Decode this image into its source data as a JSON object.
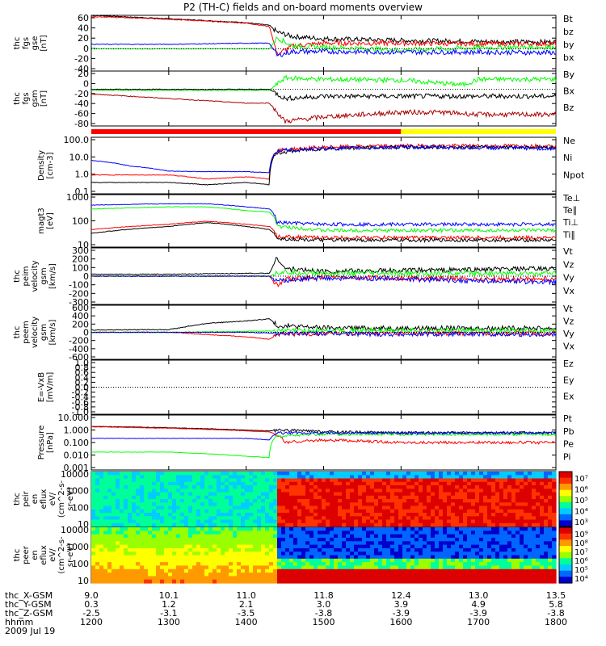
{
  "title": "P2 (TH-C) fields and on-board moments overview",
  "colors": {
    "black": "#000000",
    "red": "#ff0000",
    "green": "#00ff00",
    "blue": "#0000ff",
    "darkred": "#aa0000"
  },
  "time": {
    "start": 12.0,
    "end": 18.0,
    "tick_labels": [
      "1200",
      "1300",
      "1400",
      "1500",
      "1600",
      "1700",
      "1800"
    ]
  },
  "footer": {
    "rows": [
      {
        "name": "thc_X-GSM",
        "values": [
          "9.0",
          "10.1",
          "11.0",
          "11.8",
          "12.4",
          "13.0",
          "13.5"
        ]
      },
      {
        "name": "thc_Y-GSM",
        "values": [
          "0.3",
          "1.2",
          "2.1",
          "3.0",
          "3.9",
          "4.9",
          "5.8"
        ]
      },
      {
        "name": "thc_Z-GSM",
        "values": [
          "-2.5",
          "-3.1",
          "-3.5",
          "-3.8",
          "-3.9",
          "-3.9",
          "-3.8"
        ]
      },
      {
        "name": "hhmm",
        "values": [
          "1200",
          "1300",
          "1400",
          "1500",
          "1600",
          "1700",
          "1800"
        ]
      }
    ],
    "date": "2009 Jul 19"
  },
  "chart_data": [
    {
      "type": "line",
      "panel": "fgs-gse",
      "ylabel": "thc fgs gse [nT]",
      "ylim": [
        -40,
        60
      ],
      "ticks": [
        "60",
        "40",
        "20",
        "0",
        "-20",
        "-40"
      ],
      "series": [
        {
          "name": "Bt",
          "color": "#000000",
          "x": [
            12.0,
            13.0,
            14.0,
            14.3,
            14.4,
            14.6,
            15.0,
            16.0,
            17.0,
            18.0
          ],
          "y": [
            60,
            54,
            47,
            42,
            30,
            22,
            18,
            15,
            13,
            12
          ]
        },
        {
          "name": "bz",
          "color": "#ff0000",
          "x": [
            12.0,
            13.0,
            14.0,
            14.3,
            14.4,
            14.6,
            15.0,
            16.0,
            17.0,
            18.0
          ],
          "y": [
            58,
            53,
            46,
            40,
            -10,
            5,
            10,
            10,
            9,
            9
          ]
        },
        {
          "name": "by",
          "color": "#00ff00",
          "x": [
            12.0,
            13.0,
            14.0,
            14.3,
            14.4,
            14.6,
            15.0,
            16.0,
            17.0,
            18.0
          ],
          "y": [
            0,
            0,
            0,
            0,
            20,
            5,
            3,
            -2,
            2,
            3
          ]
        },
        {
          "name": "bx",
          "color": "#0000ff",
          "x": [
            12.0,
            13.0,
            14.0,
            14.3,
            14.4,
            14.6,
            15.0,
            16.0,
            17.0,
            18.0
          ],
          "y": [
            8,
            8,
            10,
            10,
            -12,
            -5,
            -5,
            -6,
            -6,
            -7
          ]
        }
      ]
    },
    {
      "type": "line",
      "panel": "fgs-gsm",
      "ylabel": "thc fgs gsm [nT]",
      "ylim": [
        -80,
        40
      ],
      "ticks": [
        "20",
        "0",
        "-20",
        "-40",
        "-60",
        "-80"
      ],
      "series": [
        {
          "name": "By",
          "color": "#00ff00",
          "x": [
            12.0,
            13.0,
            14.0,
            14.3,
            14.5,
            15.0,
            16.0,
            16.8,
            17.0,
            18.0
          ],
          "y": [
            -2,
            -2,
            -2,
            -2,
            25,
            22,
            20,
            10,
            22,
            22
          ]
        },
        {
          "name": "Bx",
          "color": "#000000",
          "x": [
            12.0,
            13.0,
            14.0,
            14.3,
            14.5,
            15.0,
            16.0,
            17.0,
            18.0
          ],
          "y": [
            0,
            0,
            0,
            0,
            -20,
            -15,
            -15,
            -15,
            -15
          ]
        },
        {
          "name": "Bz",
          "color": "#aa0000",
          "x": [
            12.0,
            13.0,
            14.0,
            14.3,
            14.5,
            15.0,
            16.0,
            16.5,
            17.0,
            18.0
          ],
          "y": [
            -10,
            -20,
            -30,
            -30,
            -70,
            -60,
            -50,
            -50,
            -55,
            -55
          ]
        }
      ]
    },
    {
      "type": "line",
      "panel": "density",
      "ylabel": "Density [cm-3]",
      "scale": "log",
      "ylim": [
        0.1,
        100
      ],
      "ticks": [
        "100.0",
        "10.0",
        "1.0",
        "0.1"
      ],
      "series": [
        {
          "name": "Ne",
          "color": "#ff0000",
          "x": [
            12.0,
            13.0,
            13.5,
            14.0,
            14.3,
            14.4,
            15.0,
            16.0,
            17.0,
            18.0
          ],
          "y": [
            1.0,
            1.0,
            0.6,
            0.8,
            0.6,
            20,
            30,
            35,
            35,
            35
          ]
        },
        {
          "name": "Ni",
          "color": "#000000",
          "x": [
            12.0,
            13.0,
            13.5,
            14.0,
            14.3,
            14.4,
            15.0,
            16.0,
            17.0,
            18.0
          ],
          "y": [
            0.4,
            0.4,
            0.3,
            0.4,
            0.3,
            15,
            25,
            30,
            30,
            30
          ]
        },
        {
          "name": "Npot",
          "color": "#0000ff",
          "x": [
            12.0,
            12.5,
            13.0,
            13.5,
            14.0,
            14.3,
            14.4,
            15.0,
            16.0,
            17.0,
            18.0
          ],
          "y": [
            6,
            3,
            1.6,
            1.5,
            1.5,
            1.3,
            20,
            25,
            30,
            28,
            25
          ]
        }
      ]
    },
    {
      "type": "line",
      "panel": "temperature",
      "ylabel": "magt3 [eV]",
      "scale": "log",
      "ylim": [
        10,
        10000
      ],
      "ticks": [
        "1000",
        "100",
        "10"
      ],
      "series": [
        {
          "name": "Te⊥",
          "color": "#ff0000",
          "x": [
            12.0,
            13.0,
            13.5,
            14.0,
            14.3,
            14.4,
            15.0,
            16.0,
            17.0,
            18.0
          ],
          "y": [
            100,
            200,
            300,
            200,
            150,
            40,
            35,
            35,
            35,
            35
          ]
        },
        {
          "name": "Te∥",
          "color": "#000000",
          "x": [
            12.0,
            13.0,
            13.5,
            14.0,
            14.3,
            14.4,
            15.0,
            16.0,
            17.0,
            18.0
          ],
          "y": [
            60,
            150,
            250,
            150,
            100,
            30,
            25,
            25,
            25,
            25
          ]
        },
        {
          "name": "Ti⊥",
          "color": "#0000ff",
          "x": [
            12.0,
            13.0,
            13.5,
            14.0,
            14.3,
            14.4,
            15.0,
            16.0,
            17.0,
            18.0
          ],
          "y": [
            2500,
            3000,
            3000,
            2000,
            1500,
            250,
            200,
            200,
            200,
            200
          ]
        },
        {
          "name": "Ti∥",
          "color": "#00ff00",
          "x": [
            12.0,
            13.0,
            13.5,
            14.0,
            14.3,
            14.4,
            15.0,
            16.0,
            17.0,
            18.0
          ],
          "y": [
            1500,
            2000,
            2000,
            1200,
            1000,
            150,
            90,
            90,
            90,
            90
          ]
        }
      ]
    },
    {
      "type": "line",
      "panel": "peim-velocity",
      "ylabel": "thc peim velocity gsm [km/s]",
      "ylim": [
        -300,
        300
      ],
      "ticks": [
        "300",
        "200",
        "100",
        "0",
        "-100",
        "-200",
        "-300"
      ],
      "series": [
        {
          "name": "Vt",
          "color": "#000000",
          "x": [
            12.0,
            13.0,
            14.0,
            14.3,
            14.4,
            14.5,
            15.0,
            16.0,
            17.0,
            18.0
          ],
          "y": [
            20,
            20,
            30,
            30,
            200,
            80,
            50,
            60,
            70,
            80
          ]
        },
        {
          "name": "Vz",
          "color": "#ff0000",
          "x": [
            12.0,
            13.0,
            14.0,
            14.3,
            14.4,
            14.5,
            15.0,
            16.0,
            17.0,
            18.0
          ],
          "y": [
            0,
            0,
            0,
            0,
            -100,
            -30,
            -10,
            -20,
            -30,
            -30
          ]
        },
        {
          "name": "Vy",
          "color": "#00ff00",
          "x": [
            12.0,
            13.0,
            14.0,
            14.3,
            14.4,
            15.0,
            16.0,
            17.0,
            18.0
          ],
          "y": [
            0,
            0,
            0,
            0,
            40,
            30,
            30,
            30,
            30
          ]
        },
        {
          "name": "Vx",
          "color": "#0000ff",
          "x": [
            12.0,
            13.0,
            14.0,
            14.3,
            14.4,
            15.0,
            16.0,
            17.0,
            18.0
          ],
          "y": [
            0,
            0,
            0,
            0,
            -50,
            -20,
            -30,
            -50,
            -60
          ]
        }
      ]
    },
    {
      "type": "line",
      "panel": "peem-velocity",
      "ylabel": "thc peem velocity gsm [km/s]",
      "ylim": [
        -600,
        600
      ],
      "ticks": [
        "600",
        "400",
        "200",
        "0",
        "-200",
        "-400",
        "-600"
      ],
      "series": [
        {
          "name": "Vt",
          "color": "#000000",
          "x": [
            12.0,
            13.0,
            13.5,
            14.0,
            14.3,
            14.4,
            15.0,
            16.0,
            17.0,
            18.0
          ],
          "y": [
            50,
            60,
            200,
            250,
            300,
            150,
            100,
            90,
            90,
            90
          ]
        },
        {
          "name": "Vz",
          "color": "#ff0000",
          "x": [
            12.0,
            13.0,
            13.5,
            14.0,
            14.3,
            14.4,
            15.0,
            16.0,
            17.0,
            18.0
          ],
          "y": [
            0,
            0,
            -50,
            -100,
            -150,
            -50,
            -20,
            -20,
            -20,
            -20
          ]
        },
        {
          "name": "Vy",
          "color": "#00ff00",
          "x": [
            12.0,
            13.0,
            14.0,
            14.3,
            15.0,
            16.0,
            17.0,
            18.0
          ],
          "y": [
            0,
            0,
            20,
            30,
            40,
            40,
            40,
            40
          ]
        },
        {
          "name": "Vx",
          "color": "#0000ff",
          "x": [
            12.0,
            13.0,
            14.0,
            14.3,
            15.0,
            16.0,
            17.0,
            18.0
          ],
          "y": [
            0,
            0,
            0,
            -20,
            -30,
            -40,
            -40,
            -40
          ]
        }
      ]
    },
    {
      "type": "line",
      "panel": "efield",
      "ylabel": "E=-VxB [mV/m]",
      "ylim": [
        -1,
        1
      ],
      "ticks": [
        "1.0",
        "0.8",
        "0.6",
        "0.4",
        "0.2",
        "0.0",
        "-0.2",
        "-0.4",
        "-0.6",
        "-0.8",
        "-1.0"
      ],
      "series": [
        {
          "name": "Ez",
          "color": "#ff0000",
          "x": [],
          "y": []
        },
        {
          "name": "Ey",
          "color": "#00ff00",
          "x": [],
          "y": []
        },
        {
          "name": "Ex",
          "color": "#0000ff",
          "x": [],
          "y": []
        }
      ]
    },
    {
      "type": "line",
      "panel": "pressure",
      "ylabel": "Pressure [nPa]",
      "scale": "log",
      "ylim": [
        0.001,
        10
      ],
      "ticks": [
        "10.000",
        "1.000",
        "0.100",
        "0.010",
        "0.001"
      ],
      "series": [
        {
          "name": "Pt",
          "color": "#000000",
          "x": [
            12.0,
            13.0,
            14.0,
            14.3,
            14.5,
            15.0,
            16.0,
            17.0,
            18.0
          ],
          "y": [
            1.5,
            1.2,
            0.8,
            0.7,
            0.8,
            0.6,
            0.5,
            0.5,
            0.5
          ]
        },
        {
          "name": "Pb",
          "color": "#ff0000",
          "x": [
            12.0,
            13.0,
            14.0,
            14.3,
            14.5,
            15.0,
            16.0,
            17.0,
            18.0
          ],
          "y": [
            1.4,
            1.1,
            0.7,
            0.6,
            0.1,
            0.15,
            0.1,
            0.1,
            0.1
          ]
        },
        {
          "name": "Pe",
          "color": "#00ff00",
          "x": [
            12.0,
            13.0,
            13.5,
            14.0,
            14.3,
            14.4,
            15.0,
            16.0,
            17.0,
            18.0
          ],
          "y": [
            0.02,
            0.02,
            0.015,
            0.01,
            0.008,
            0.3,
            0.4,
            0.4,
            0.4,
            0.4
          ]
        },
        {
          "name": "Pi",
          "color": "#0000ff",
          "x": [
            12.0,
            13.0,
            14.0,
            14.3,
            14.4,
            15.0,
            16.0,
            17.0,
            18.0
          ],
          "y": [
            0.2,
            0.2,
            0.2,
            0.15,
            0.5,
            0.5,
            0.5,
            0.5,
            0.5
          ]
        }
      ]
    },
    {
      "type": "heatmap",
      "panel": "peir-eflux",
      "ylabel": "thc peir en eflux eV/(cm^2-s-sr-eV)",
      "scale": "log",
      "ylim": [
        10,
        20000
      ],
      "ticks": [
        "10000",
        "1000",
        "100",
        "10"
      ],
      "colorbar": {
        "ticks": [
          "10⁷",
          "10⁶",
          "10⁵",
          "10⁴",
          "10³"
        ]
      }
    },
    {
      "type": "heatmap",
      "panel": "peer-eflux",
      "ylabel": "thc peer en eflux eV/(cm^2-s-sr-eV)",
      "scale": "log",
      "ylim": [
        10,
        20000
      ],
      "ticks": [
        "10000",
        "1000",
        "100",
        "10"
      ],
      "colorbar": {
        "ticks": [
          "10⁹",
          "10⁸",
          "10⁷",
          "10⁶",
          "10⁵",
          "10⁴"
        ]
      }
    }
  ],
  "legends": [
    [
      "Bt",
      "bz",
      "by",
      "bx"
    ],
    [
      "By",
      "Bx",
      "Bz"
    ],
    [
      "Ne",
      "Ni",
      "Npot"
    ],
    [
      "Te⊥",
      "Te∥",
      "Ti⊥",
      "Ti∥"
    ],
    [
      "Vt",
      "Vz",
      "Vy",
      "Vx"
    ],
    [
      "Vt",
      "Vz",
      "Vy",
      "Vx"
    ],
    [
      "Ez",
      "Ey",
      "Ex"
    ],
    [
      "Pt",
      "Pb",
      "Pe",
      "Pi"
    ]
  ],
  "ylabels": [
    [
      "thc",
      "fgs",
      "gse",
      "[nT]"
    ],
    [
      "thc",
      "fgs",
      "gsm",
      "[nT]"
    ],
    [
      "Density",
      "[cm-3]"
    ],
    [
      "magt3",
      "[eV]"
    ],
    [
      "thc",
      "peim",
      "velocity",
      "gsm",
      "[km/s]"
    ],
    [
      "thc",
      "peem",
      "velocity",
      "gsm",
      "[km/s]"
    ],
    [
      "E=-VxB",
      "[mV/m]"
    ],
    [
      "Pressure",
      "[nPa]"
    ],
    [
      "thc",
      "peir",
      "en",
      "eflux",
      "eV/",
      "(cm^2-s-",
      "sr-eV)"
    ],
    [
      "thc",
      "peer",
      "en",
      "eflux",
      "eV/",
      "(cm^2-s-",
      "sr-eV)"
    ]
  ]
}
